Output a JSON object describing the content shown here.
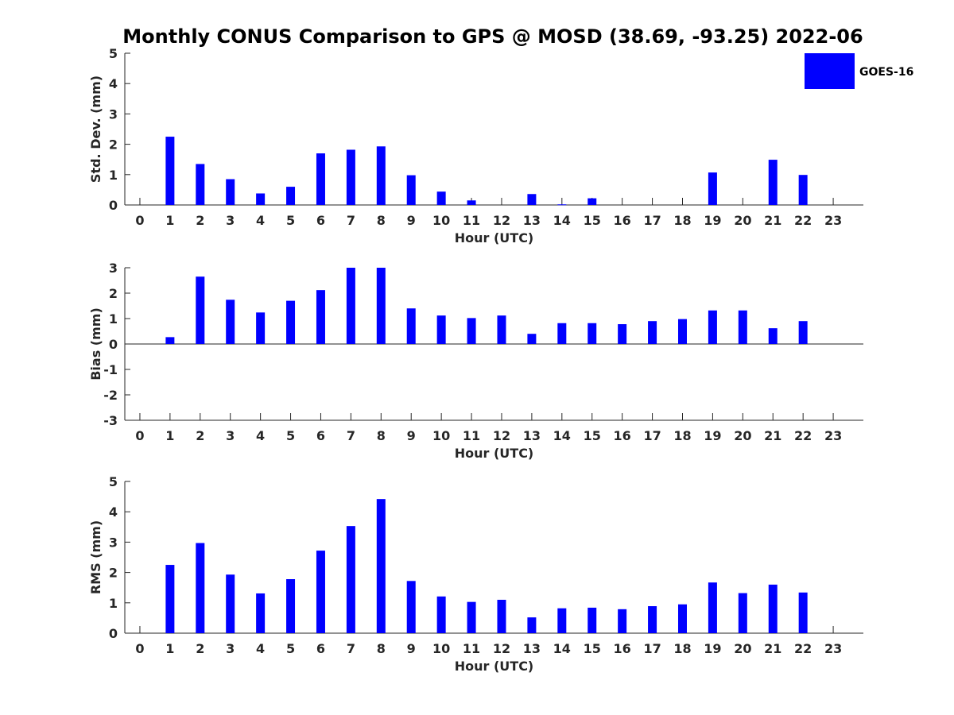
{
  "chart_data": [
    {
      "type": "bar",
      "title": "Monthly CONUS Comparison to GPS @ MOSD (38.69, -93.25) 2022-06",
      "xlabel": "Hour (UTC)",
      "ylabel": "Std. Dev. (mm)",
      "ylim": [
        0,
        5
      ],
      "yticks": [
        "0",
        "1",
        "2",
        "3",
        "4",
        "5"
      ],
      "categories": [
        "0",
        "1",
        "2",
        "3",
        "4",
        "5",
        "6",
        "7",
        "8",
        "9",
        "10",
        "11",
        "12",
        "13",
        "14",
        "15",
        "16",
        "17",
        "18",
        "19",
        "20",
        "21",
        "22",
        "23"
      ],
      "series": [
        {
          "name": "GOES-16",
          "color": "#0000ff",
          "values": [
            null,
            2.25,
            1.35,
            0.85,
            0.38,
            0.6,
            1.7,
            1.82,
            1.93,
            0.98,
            0.44,
            0.15,
            null,
            0.36,
            0.02,
            0.22,
            null,
            null,
            null,
            1.07,
            null,
            1.49,
            0.99,
            null
          ]
        }
      ],
      "legend": {
        "entries": [
          "GOES-16"
        ],
        "location": "top-right"
      }
    },
    {
      "type": "bar",
      "xlabel": "Hour (UTC)",
      "ylabel": "Bias (mm)",
      "ylim": [
        -3,
        3
      ],
      "yticks": [
        "-3",
        "-2",
        "-1",
        "0",
        "1",
        "2",
        "3"
      ],
      "categories": [
        "0",
        "1",
        "2",
        "3",
        "4",
        "5",
        "6",
        "7",
        "8",
        "9",
        "10",
        "11",
        "12",
        "13",
        "14",
        "15",
        "16",
        "17",
        "18",
        "19",
        "20",
        "21",
        "22",
        "23"
      ],
      "series": [
        {
          "name": "GOES-16",
          "color": "#0000ff",
          "values": [
            null,
            0.27,
            2.65,
            1.74,
            1.24,
            1.7,
            2.12,
            3.0,
            3.0,
            1.4,
            1.12,
            1.02,
            1.12,
            0.4,
            0.82,
            0.82,
            0.78,
            0.9,
            0.98,
            1.32,
            1.32,
            0.62,
            0.9,
            null
          ]
        }
      ],
      "zero_line": true
    },
    {
      "type": "bar",
      "xlabel": "Hour (UTC)",
      "ylabel": "RMS (mm)",
      "ylim": [
        0,
        5
      ],
      "yticks": [
        "0",
        "1",
        "2",
        "3",
        "4",
        "5"
      ],
      "categories": [
        "0",
        "1",
        "2",
        "3",
        "4",
        "5",
        "6",
        "7",
        "8",
        "9",
        "10",
        "11",
        "12",
        "13",
        "14",
        "15",
        "16",
        "17",
        "18",
        "19",
        "20",
        "21",
        "22",
        "23"
      ],
      "series": [
        {
          "name": "GOES-16",
          "color": "#0000ff",
          "values": [
            null,
            2.25,
            2.97,
            1.93,
            1.31,
            1.78,
            2.72,
            3.53,
            4.42,
            1.72,
            1.21,
            1.03,
            1.1,
            0.52,
            0.82,
            0.84,
            0.79,
            0.89,
            0.95,
            1.67,
            1.32,
            1.6,
            1.34,
            null
          ]
        }
      ]
    }
  ]
}
